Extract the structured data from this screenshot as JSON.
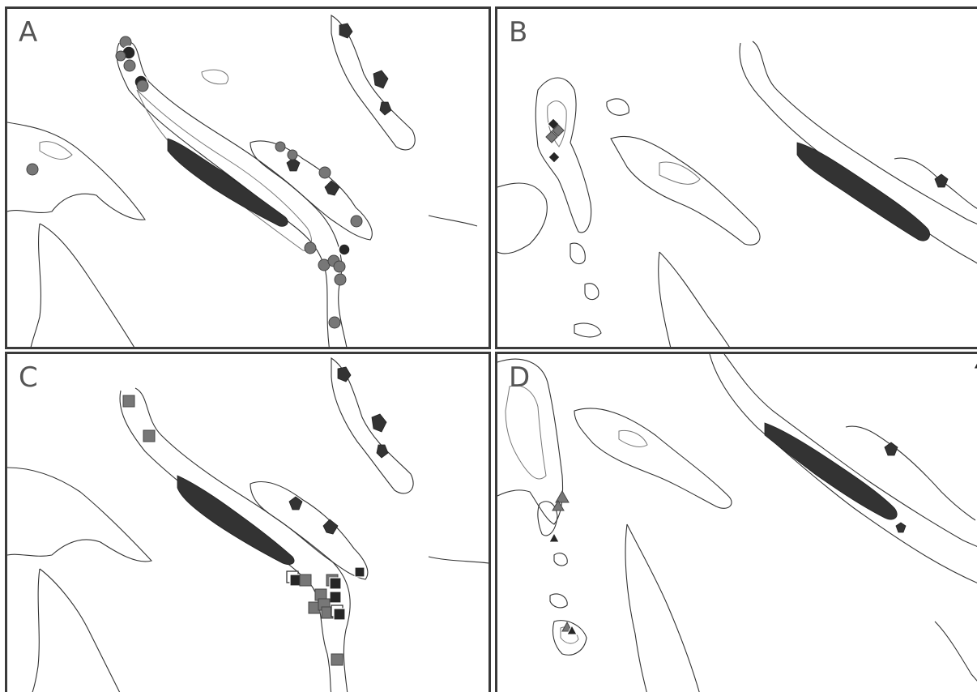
{
  "panels": [
    {
      "id": "A",
      "label": "A",
      "marker": "circle"
    },
    {
      "id": "B",
      "label": "B",
      "marker": "diamond"
    },
    {
      "id": "C",
      "label": "C",
      "marker": "square"
    },
    {
      "id": "D",
      "label": "D",
      "marker": "triangle"
    }
  ],
  "colors": {
    "border": "#3a3a3a",
    "land": "#333333",
    "coastline": "#333333",
    "depth_contour": "#777777",
    "marker_gray": "#777777",
    "marker_dark": "#262626",
    "background": "#ffffff"
  }
}
